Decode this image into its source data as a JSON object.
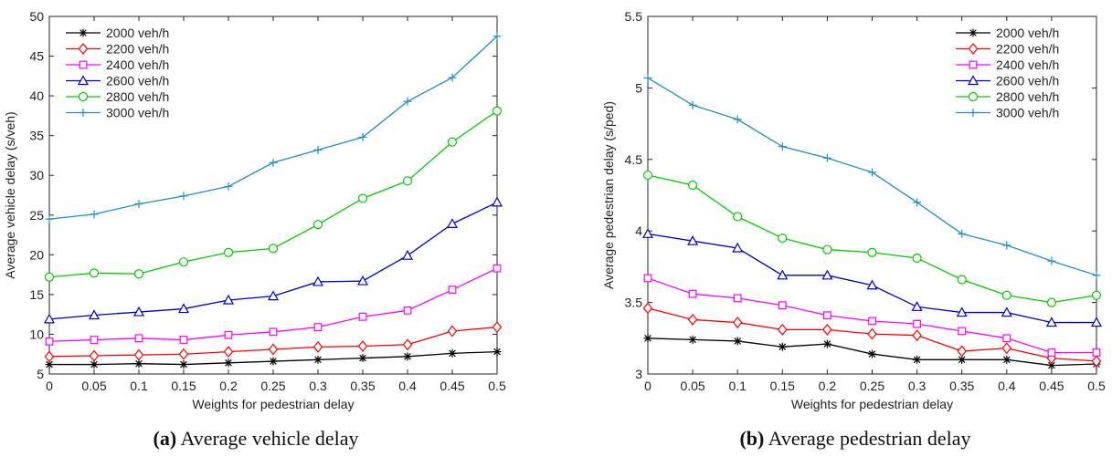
{
  "figure": {
    "legend_labels": [
      "2000 veh/h",
      "2200 veh/h",
      "2400 veh/h",
      "2600 veh/h",
      "2800 veh/h",
      "3000 veh/h"
    ]
  },
  "colors": {
    "2000": "#000000",
    "2200": "#ff0000",
    "2400": "#ff00ff",
    "2600": "#0000cd",
    "2800": "#00cc00",
    "3000": "#1f8fbf"
  },
  "chart_data": [
    {
      "type": "line",
      "caption_label": "(a)",
      "caption_text": " Average vehicle delay",
      "xlabel": "Weights for pedestrian delay",
      "ylabel": "Average vehicle delay (s/veh)",
      "x": [
        0,
        0.05,
        0.1,
        0.15,
        0.2,
        0.25,
        0.3,
        0.35,
        0.4,
        0.45,
        0.5
      ],
      "xlim": [
        0,
        0.5
      ],
      "ylim": [
        5,
        50
      ],
      "yticks": [
        5,
        10,
        15,
        20,
        25,
        30,
        35,
        40,
        45,
        50
      ],
      "legend_position": "top-left",
      "series": [
        {
          "name": "2000 veh/h",
          "marker": "star",
          "color": "#000000",
          "values": [
            6.2,
            6.2,
            6.3,
            6.2,
            6.4,
            6.6,
            6.8,
            7.0,
            7.2,
            7.6,
            7.8
          ]
        },
        {
          "name": "2200 veh/h",
          "marker": "diamond",
          "color": "#ff0000",
          "values": [
            7.2,
            7.3,
            7.4,
            7.5,
            7.8,
            8.1,
            8.4,
            8.5,
            8.7,
            10.4,
            10.9
          ]
        },
        {
          "name": "2400 veh/h",
          "marker": "square",
          "color": "#ff00ff",
          "values": [
            9.1,
            9.3,
            9.5,
            9.3,
            9.9,
            10.3,
            10.9,
            12.2,
            13.0,
            15.6,
            18.3
          ]
        },
        {
          "name": "2600 veh/h",
          "marker": "triangle",
          "color": "#0000cd",
          "values": [
            11.9,
            12.4,
            12.8,
            13.2,
            14.3,
            14.8,
            16.6,
            16.7,
            19.9,
            23.9,
            26.6
          ]
        },
        {
          "name": "2800 veh/h",
          "marker": "circle",
          "color": "#00cc00",
          "values": [
            17.2,
            17.7,
            17.6,
            19.1,
            20.3,
            20.8,
            23.8,
            27.1,
            29.3,
            34.2,
            38.1
          ]
        },
        {
          "name": "3000 veh/h",
          "marker": "plus",
          "color": "#1f8fbf",
          "values": [
            24.5,
            25.1,
            26.4,
            27.4,
            28.6,
            31.6,
            33.2,
            34.8,
            39.3,
            42.3,
            47.5
          ]
        }
      ]
    },
    {
      "type": "line",
      "caption_label": "(b)",
      "caption_text": " Average pedestrian delay",
      "xlabel": "Weights for pedestrian delay",
      "ylabel": "Average pedestrian delay (s/ped)",
      "x": [
        0,
        0.05,
        0.1,
        0.15,
        0.2,
        0.25,
        0.3,
        0.35,
        0.4,
        0.45,
        0.5
      ],
      "xlim": [
        0,
        0.5
      ],
      "ylim": [
        3,
        5.5
      ],
      "yticks": [
        3,
        3.5,
        4,
        4.5,
        5,
        5.5
      ],
      "legend_position": "top-right",
      "series": [
        {
          "name": "2000 veh/h",
          "marker": "star",
          "color": "#000000",
          "values": [
            3.25,
            3.24,
            3.23,
            3.19,
            3.21,
            3.14,
            3.1,
            3.1,
            3.1,
            3.06,
            3.07
          ]
        },
        {
          "name": "2200 veh/h",
          "marker": "diamond",
          "color": "#ff0000",
          "values": [
            3.46,
            3.38,
            3.36,
            3.31,
            3.31,
            3.28,
            3.27,
            3.16,
            3.18,
            3.11,
            3.09
          ]
        },
        {
          "name": "2400 veh/h",
          "marker": "square",
          "color": "#ff00ff",
          "values": [
            3.67,
            3.56,
            3.53,
            3.48,
            3.41,
            3.37,
            3.35,
            3.3,
            3.25,
            3.15,
            3.15
          ]
        },
        {
          "name": "2600 veh/h",
          "marker": "triangle",
          "color": "#0000cd",
          "values": [
            3.98,
            3.93,
            3.88,
            3.69,
            3.69,
            3.62,
            3.47,
            3.43,
            3.43,
            3.36,
            3.36
          ]
        },
        {
          "name": "2800 veh/h",
          "marker": "circle",
          "color": "#00cc00",
          "values": [
            4.39,
            4.32,
            4.1,
            3.95,
            3.87,
            3.85,
            3.81,
            3.66,
            3.55,
            3.5,
            3.55
          ]
        },
        {
          "name": "3000 veh/h",
          "marker": "plus",
          "color": "#1f8fbf",
          "values": [
            5.07,
            4.88,
            4.78,
            4.59,
            4.51,
            4.41,
            4.2,
            3.98,
            3.9,
            3.79,
            3.69
          ]
        }
      ]
    }
  ]
}
